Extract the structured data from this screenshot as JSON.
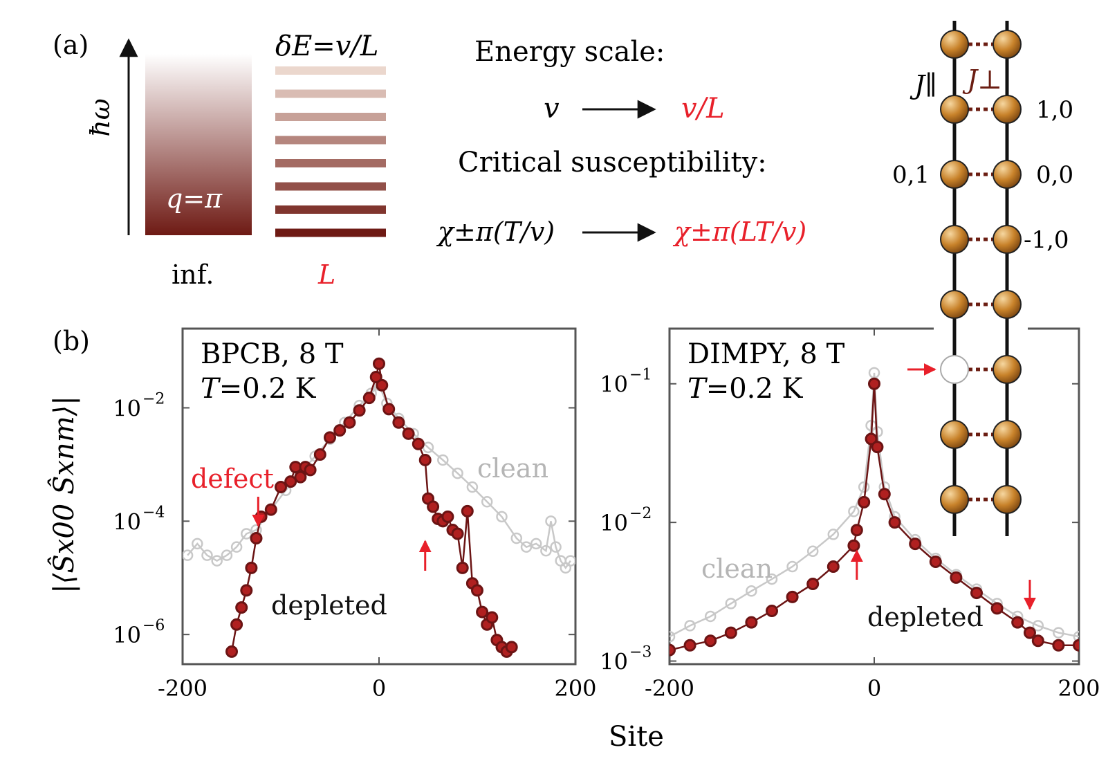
{
  "panel_a": {
    "label": "(a)",
    "yaxis_label": "ħω",
    "band_label": "q=π",
    "inf_label": "inf.",
    "levels_label": "δE=v/L",
    "L_label": "L",
    "level_count": 8,
    "energy_scale_title": "Energy scale:",
    "energy_from": "v",
    "energy_to": "v/L",
    "susc_title": "Critical susceptibility:",
    "susc_from": "χ±π(T/v)",
    "susc_to": "χ±π(LT/v)"
  },
  "ladder": {
    "j_parallel": "J∥",
    "j_perp": "J⊥",
    "site_labels": [
      "1,0",
      "0,1",
      "0,0",
      "-1,0"
    ],
    "rungs": 8,
    "vacancy_rung_index": 5
  },
  "colors": {
    "depleted": "#6b1414",
    "depleted_fill": "#b02020",
    "clean": "#c8c8c8",
    "accent_red": "#e8202a",
    "gradient_top": "#ffffff",
    "gradient_bottom": "#6e1a14",
    "ball": "#c8822a"
  },
  "panel_b": {
    "label": "(b)",
    "ylabel": "|⟨Ŝx00 Ŝxnm⟩|",
    "xlabel": "Site"
  },
  "chart_data": [
    {
      "type": "scatter",
      "title": "BPCB, 8 T",
      "subtitle": "T=0.2 K",
      "yscale": "log",
      "xlim": [
        -200,
        200
      ],
      "ylim": [
        3e-07,
        0.25
      ],
      "xticks": [
        -200,
        0,
        200
      ],
      "xtick_labels": [
        "-200",
        "0",
        "200"
      ],
      "yticks": [
        1e-06,
        0.0001,
        0.01
      ],
      "ytick_labels": [
        "10",
        "10",
        "10"
      ],
      "ytick_exps": [
        "−6",
        "−4",
        "−2"
      ],
      "annotations": {
        "defect": "defect",
        "depleted": "depleted",
        "clean": "clean"
      },
      "defect_arrows_x": [
        -123,
        47
      ],
      "series": [
        {
          "name": "clean",
          "x": [
            -195,
            -185,
            -175,
            -165,
            -155,
            -145,
            -135,
            -125,
            -110,
            -95,
            -80,
            -65,
            -50,
            -35,
            -20,
            -8,
            0,
            8,
            20,
            35,
            50,
            65,
            80,
            95,
            110,
            125,
            140,
            150,
            160,
            170,
            175,
            180,
            185,
            190,
            195
          ],
          "y": [
            2.5e-05,
            4e-05,
            2.5e-05,
            2e-05,
            2.5e-05,
            3.5e-05,
            6e-05,
            7e-05,
            0.00016,
            0.00035,
            0.0007,
            0.0014,
            0.0028,
            0.0055,
            0.011,
            0.018,
            0.025,
            0.012,
            0.0065,
            0.0035,
            0.002,
            0.0012,
            0.0007,
            0.0004,
            0.00022,
            0.00012,
            5e-05,
            3.5e-05,
            4e-05,
            3e-05,
            0.0001,
            3.5e-05,
            2e-05,
            1.5e-05,
            2e-05
          ]
        },
        {
          "name": "depleted",
          "x": [
            -150,
            -145,
            -140,
            -135,
            -130,
            -125,
            -120,
            -110,
            -100,
            -90,
            -85,
            -80,
            -75,
            -70,
            -60,
            -50,
            -40,
            -30,
            -20,
            -10,
            -3,
            0,
            3,
            10,
            20,
            30,
            40,
            47,
            50,
            55,
            60,
            65,
            70,
            75,
            80,
            85,
            90,
            95,
            100,
            105,
            110,
            115,
            120,
            125,
            130,
            135
          ],
          "y": [
            5e-07,
            1.5e-06,
            3e-06,
            6e-06,
            1.5e-05,
            5e-05,
            0.00012,
            0.00016,
            0.0004,
            0.0005,
            0.0009,
            0.0006,
            0.0009,
            0.0008,
            0.0015,
            0.003,
            0.004,
            0.0055,
            0.009,
            0.015,
            0.035,
            0.06,
            0.025,
            0.0095,
            0.0055,
            0.0035,
            0.0023,
            0.0012,
            0.00025,
            0.00018,
            0.00011,
            0.0001,
            0.00012,
            7e-05,
            6e-05,
            1.5e-05,
            0.00015,
            8e-06,
            6e-06,
            2.5e-06,
            1.5e-06,
            2e-06,
            8e-07,
            6e-07,
            5e-07,
            6e-07
          ]
        }
      ]
    },
    {
      "type": "scatter",
      "title": "DIMPY, 8 T",
      "subtitle": "T=0.2 K",
      "yscale": "log",
      "xlim": [
        -200,
        200
      ],
      "ylim": [
        0.00095,
        0.25
      ],
      "xticks": [
        -200,
        0,
        200
      ],
      "xtick_labels": [
        "-200",
        "0",
        "200"
      ],
      "yticks": [
        0.001,
        0.01,
        0.1
      ],
      "ytick_labels": [
        "10",
        "10",
        "10"
      ],
      "ytick_exps": [
        "−3",
        "−2",
        "−1"
      ],
      "annotations": {
        "depleted": "depleted",
        "clean": "clean"
      },
      "defect_arrows_x": [
        -17,
        152
      ],
      "series": [
        {
          "name": "clean",
          "x": [
            -200,
            -180,
            -160,
            -140,
            -120,
            -100,
            -80,
            -60,
            -40,
            -20,
            -10,
            -3,
            0,
            3,
            10,
            20,
            40,
            60,
            80,
            100,
            120,
            140,
            160,
            180,
            200
          ],
          "y": [
            0.0015,
            0.0018,
            0.0021,
            0.0026,
            0.0032,
            0.0039,
            0.0048,
            0.0062,
            0.0082,
            0.012,
            0.018,
            0.05,
            0.12,
            0.045,
            0.018,
            0.011,
            0.0075,
            0.0055,
            0.0042,
            0.0033,
            0.0026,
            0.0021,
            0.0018,
            0.0016,
            0.0015
          ]
        },
        {
          "name": "depleted",
          "x": [
            -200,
            -180,
            -160,
            -140,
            -120,
            -100,
            -80,
            -60,
            -40,
            -20,
            -17,
            -10,
            -3,
            0,
            3,
            10,
            20,
            40,
            60,
            80,
            100,
            120,
            140,
            152,
            160,
            180,
            200
          ],
          "y": [
            0.0012,
            0.0013,
            0.0014,
            0.0016,
            0.0019,
            0.0023,
            0.0029,
            0.0036,
            0.0048,
            0.0068,
            0.0088,
            0.014,
            0.04,
            0.1,
            0.035,
            0.016,
            0.01,
            0.007,
            0.0052,
            0.004,
            0.0031,
            0.0024,
            0.0019,
            0.0016,
            0.0014,
            0.0013,
            0.0013
          ]
        }
      ]
    }
  ]
}
